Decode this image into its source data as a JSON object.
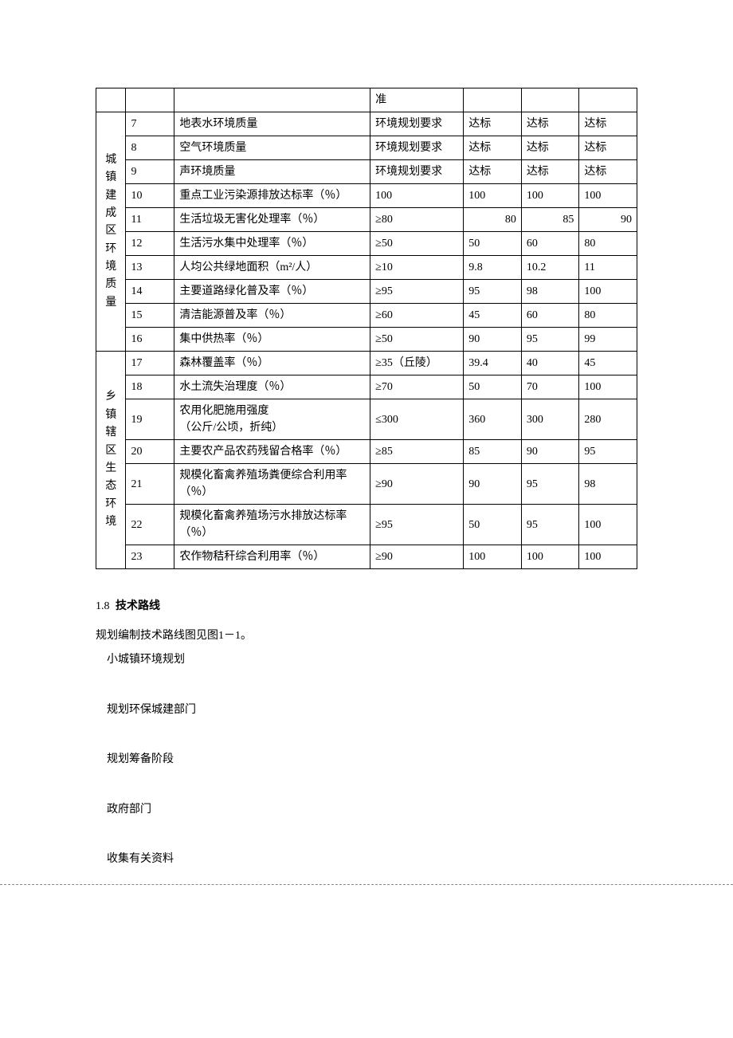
{
  "table": {
    "header_row": {
      "col4": "准"
    },
    "category1": {
      "label_chars": [
        "城",
        "镇",
        "建",
        "成",
        "区",
        "环",
        "境",
        "质",
        "量"
      ],
      "rows": [
        {
          "num": "7",
          "indicator": "地表水环境质量",
          "std": "环境规划要求",
          "v1": "达标",
          "v2": "达标",
          "v3": "达标"
        },
        {
          "num": "8",
          "indicator": "空气环境质量",
          "std": "环境规划要求",
          "v1": "达标",
          "v2": "达标",
          "v3": "达标"
        },
        {
          "num": "9",
          "indicator": "声环境质量",
          "std": "环境规划要求",
          "v1": "达标",
          "v2": "达标",
          "v3": "达标"
        },
        {
          "num": "10",
          "indicator": "重点工业污染源排放达标率（％）",
          "std": "100",
          "v1": "100",
          "v2": "100",
          "v3": "100"
        },
        {
          "num": "11",
          "indicator": "生活垃圾无害化处理率（％）",
          "std": "≥80",
          "v1": "80",
          "v2": "85",
          "v3": "90",
          "right": true
        },
        {
          "num": "12",
          "indicator": "生活污水集中处理率（％）",
          "std": "≥50",
          "v1": "50",
          "v2": "60",
          "v3": "80"
        },
        {
          "num": "13",
          "indicator": "人均公共绿地面积（m²/人）",
          "std": "≥10",
          "v1": "9.8",
          "v2": "10.2",
          "v3": "11"
        },
        {
          "num": "14",
          "indicator": "主要道路绿化普及率（％）",
          "std": "≥95",
          "v1": "95",
          "v2": "98",
          "v3": "100"
        },
        {
          "num": "15",
          "indicator": "清洁能源普及率（％）",
          "std": "≥60",
          "v1": "45",
          "v2": "60",
          "v3": "80"
        },
        {
          "num": "16",
          "indicator": "集中供热率（％）",
          "std": "≥50",
          "v1": "90",
          "v2": "95",
          "v3": "99"
        }
      ]
    },
    "category2": {
      "label_chars": [
        "乡",
        "镇",
        "辖",
        "区",
        "生",
        "态",
        "环",
        "境"
      ],
      "rows": [
        {
          "num": "17",
          "indicator": "森林覆盖率（％）",
          "std": "≥35（丘陵）",
          "v1": "39.4",
          "v2": "40",
          "v3": "45"
        },
        {
          "num": "18",
          "indicator": "水土流失治理度（％）",
          "std": "≥70",
          "v1": "50",
          "v2": "70",
          "v3": "100"
        },
        {
          "num": "19",
          "indicator": "农用化肥施用强度\n（公斤/公顷，折纯）",
          "std": "≤300",
          "v1": "360",
          "v2": "300",
          "v3": "280"
        },
        {
          "num": "20",
          "indicator": "主要农产品农药残留合格率（％）",
          "std": "≥85",
          "v1": "85",
          "v2": "90",
          "v3": "95"
        },
        {
          "num": "21",
          "indicator": "规模化畜禽养殖场粪便综合利用率（％）",
          "std": "≥90",
          "v1": "90",
          "v2": "95",
          "v3": "98"
        },
        {
          "num": "22",
          "indicator": "规模化畜禽养殖场污水排放达标率（％）",
          "std": "≥95",
          "v1": "50",
          "v2": "95",
          "v3": "100"
        },
        {
          "num": "23",
          "indicator": "农作物秸秆综合利用率（％）",
          "std": "≥90",
          "v1": "100",
          "v2": "100",
          "v3": "100"
        }
      ]
    }
  },
  "section": {
    "num": "1.8",
    "title": "技术路线",
    "text": "规划编制技术路线图见图1－1。"
  },
  "flow": [
    "小城镇环境规划",
    "规划环保城建部门",
    "规划筹备阶段",
    "政府部门",
    "收集有关资料"
  ]
}
